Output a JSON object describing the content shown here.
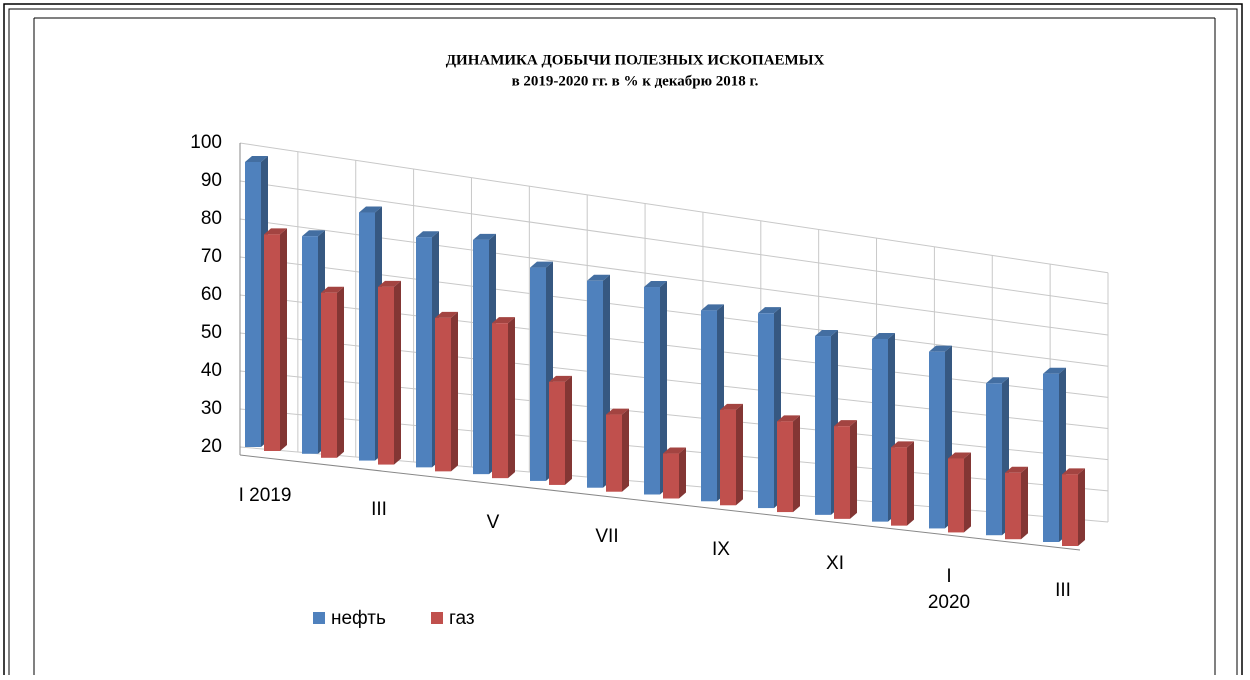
{
  "chart_data": {
    "type": "bar3d",
    "title": "ДИНАМИКА ДОБЫЧИ ПОЛЕЗНЫХ ИСКОПАЕМЫХ",
    "subtitle": "в 2019-2020 гг. в % к декабрю 2018 г.",
    "categories": [
      "I 2019",
      null,
      "III",
      null,
      "V",
      null,
      "VII",
      null,
      "IX",
      null,
      "XI",
      null,
      "I\n2020",
      null,
      "III"
    ],
    "series": [
      {
        "name": "нефть",
        "color": "#4f81bd",
        "values": [
          95,
          78,
          87,
          83,
          85,
          80,
          79,
          80,
          76,
          78,
          74,
          76,
          75,
          68,
          74
        ]
      },
      {
        "name": "газ",
        "color": "#c0504d",
        "values": [
          77,
          64,
          68,
          62,
          63,
          49,
          42,
          33,
          48,
          47,
          48,
          44,
          43,
          41,
          43
        ]
      }
    ],
    "ylim": [
      20,
      100
    ],
    "yticks": [
      20,
      30,
      40,
      50,
      60,
      70,
      80,
      90,
      100
    ],
    "grid": true,
    "legend": "bottom-left"
  }
}
